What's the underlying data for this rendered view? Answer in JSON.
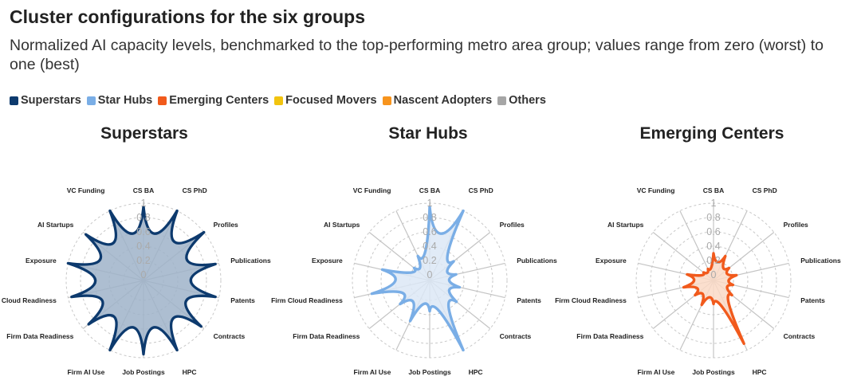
{
  "header": {
    "title": "Cluster configurations for the six groups",
    "subtitle": "Normalized AI capacity levels, benchmarked to the top-performing metro area group; values range from zero (worst) to one (best)"
  },
  "legend": [
    {
      "label": "Superstars",
      "color": "#0d3a6e"
    },
    {
      "label": "Star Hubs",
      "color": "#7aaee6"
    },
    {
      "label": "Emerging Centers",
      "color": "#f15a1c"
    },
    {
      "label": "Focused Movers",
      "color": "#f2c40f"
    },
    {
      "label": "Nascent Adopters",
      "color": "#f7941d"
    },
    {
      "label": "Others",
      "color": "#a6a6a6"
    }
  ],
  "chart_data": [
    {
      "type": "radar",
      "title": "Superstars",
      "color": "#0d3a6e",
      "fill": "#9fb3c9",
      "axes": [
        "CS BA",
        "CS PhD",
        "Profiles",
        "Publications",
        "Patents",
        "Contracts",
        "HPC",
        "Job Postings",
        "Firm AI Use",
        "Firm Data Readiness",
        "Firm Cloud Readiness",
        "Exposure",
        "AI Startups",
        "VC Funding"
      ],
      "ticks": [
        "0",
        "0.2",
        "0.4",
        "0.6",
        "0.8",
        "1"
      ],
      "range": [
        0,
        1
      ],
      "values": [
        0.95,
        1.0,
        1.0,
        0.95,
        0.95,
        0.95,
        1.0,
        0.95,
        1.0,
        0.9,
        0.95,
        1.0,
        0.95,
        1.0
      ]
    },
    {
      "type": "radar",
      "title": "Star Hubs",
      "color": "#7aaee6",
      "fill": "#dce8f6",
      "axes": [
        "CS BA",
        "CS PhD",
        "Profiles",
        "Publications",
        "Patents",
        "Contracts",
        "HPC",
        "Job Postings",
        "Firm AI Use",
        "Firm Data Readiness",
        "Firm Cloud Readiness",
        "Exposure",
        "AI Startups",
        "VC Funding"
      ],
      "ticks": [
        "0",
        "0.2",
        "0.4",
        "0.6",
        "0.8",
        "1"
      ],
      "range": [
        0,
        1
      ],
      "values": [
        0.95,
        1.0,
        0.35,
        0.3,
        0.35,
        0.4,
        1.0,
        0.35,
        0.55,
        0.45,
        0.75,
        0.6,
        0.2,
        0.3
      ]
    },
    {
      "type": "radar",
      "title": "Emerging Centers",
      "color": "#f15a1c",
      "fill": "#fad9c6",
      "axes": [
        "CS BA",
        "CS PhD",
        "Profiles",
        "Publications",
        "Patents",
        "Contracts",
        "HPC",
        "Job Postings",
        "Firm AI Use",
        "Firm Data Readiness",
        "Firm Cloud Readiness",
        "Exposure",
        "AI Startups",
        "VC Funding"
      ],
      "ticks": [
        "0",
        "0.2",
        "0.4",
        "0.6",
        "0.8",
        "1"
      ],
      "range": [
        0,
        1
      ],
      "values": [
        0.3,
        0.3,
        0.2,
        0.25,
        0.2,
        0.25,
        0.9,
        0.25,
        0.3,
        0.25,
        0.35,
        0.3,
        0.1,
        0.1
      ]
    }
  ]
}
